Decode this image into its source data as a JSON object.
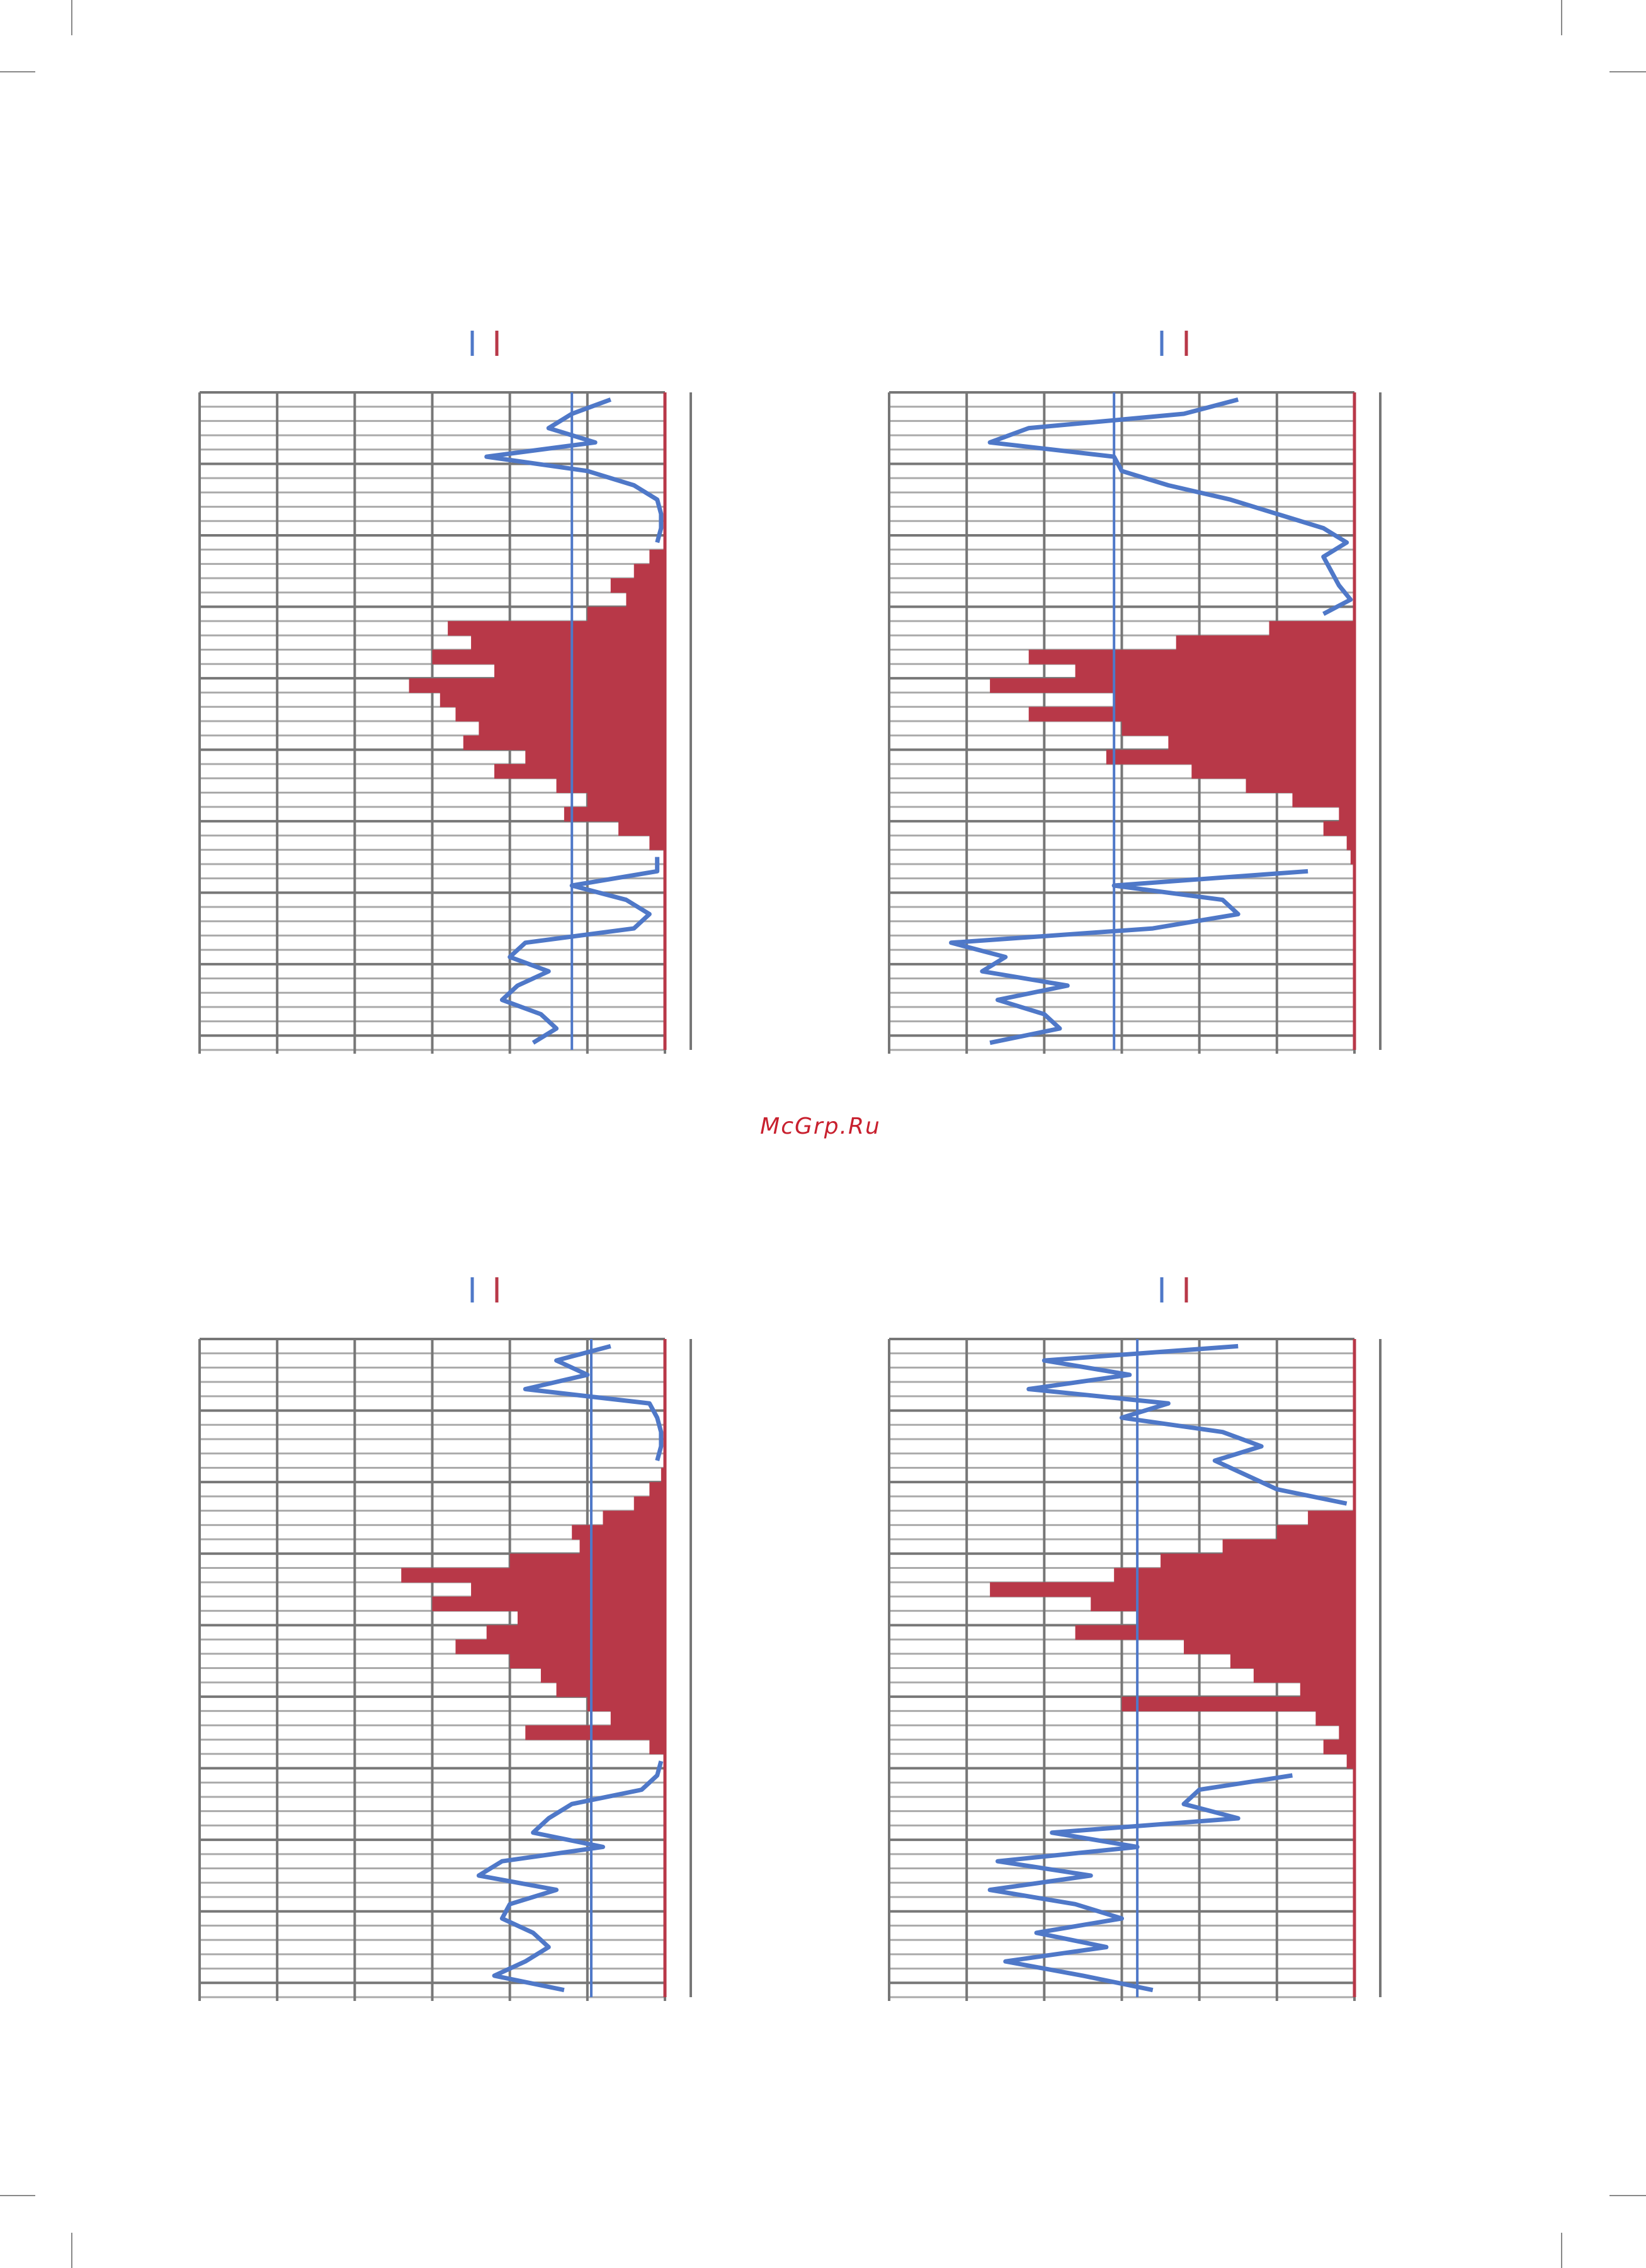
{
  "watermark": "McGrp.Ru",
  "charts": [
    {
      "type": "profile",
      "xlim": [
        0,
        6
      ],
      "xticks": [
        0,
        1,
        2,
        3,
        4,
        5,
        6
      ],
      "ref_line": 4.8,
      "series": [
        {
          "color": "#4f78c8",
          "values": [
            5.3,
            4.8,
            4.5,
            5.1,
            3.7,
            5.0,
            5.6,
            5.9,
            5.95,
            5.95,
            5.9,
            null,
            null,
            null,
            null,
            null,
            null,
            null,
            null,
            null,
            null,
            null,
            null,
            null,
            null,
            null,
            null,
            null,
            null,
            null,
            null,
            null,
            5.9,
            5.9,
            4.8,
            5.5,
            5.8,
            5.6,
            4.2,
            4.0,
            4.5,
            4.1,
            3.9,
            4.4,
            4.6,
            4.3
          ]
        },
        {
          "color": "#b83848",
          "values": [
            null,
            null,
            null,
            null,
            null,
            null,
            null,
            null,
            null,
            null,
            null,
            5.8,
            5.6,
            5.3,
            5.5,
            5.0,
            3.2,
            3.5,
            3.0,
            3.8,
            2.7,
            3.1,
            3.3,
            3.6,
            3.4,
            4.2,
            3.8,
            4.6,
            5.0,
            4.7,
            5.4,
            5.8,
            null,
            null,
            null,
            null,
            null,
            null,
            null,
            null,
            null,
            null,
            null,
            null,
            null,
            null
          ]
        }
      ]
    },
    {
      "type": "profile",
      "xlim": [
        0,
        6
      ],
      "xticks": [
        0,
        1,
        2,
        3,
        4,
        5,
        6
      ],
      "ref_line": 2.9,
      "series": [
        {
          "color": "#4f78c8",
          "values": [
            4.5,
            3.8,
            1.8,
            1.3,
            2.9,
            3.0,
            3.6,
            4.4,
            5.0,
            5.6,
            5.9,
            5.6,
            5.7,
            5.8,
            5.95,
            5.6,
            null,
            null,
            null,
            null,
            null,
            null,
            null,
            null,
            null,
            null,
            null,
            null,
            null,
            null,
            null,
            null,
            null,
            5.4,
            2.9,
            4.3,
            4.5,
            3.4,
            0.8,
            1.5,
            1.2,
            2.3,
            1.4,
            2.0,
            2.2,
            1.3
          ]
        },
        {
          "color": "#b83848",
          "values": [
            null,
            null,
            null,
            null,
            null,
            null,
            null,
            null,
            null,
            null,
            null,
            null,
            null,
            null,
            null,
            null,
            4.9,
            3.7,
            1.8,
            2.4,
            1.3,
            2.9,
            1.8,
            3.0,
            3.6,
            2.8,
            3.9,
            4.6,
            5.2,
            5.8,
            5.6,
            5.9,
            5.95,
            null,
            null,
            null,
            null,
            null,
            null,
            null,
            null,
            null,
            null,
            null,
            null,
            null
          ]
        }
      ]
    },
    {
      "type": "profile",
      "xlim": [
        0,
        6
      ],
      "xticks": [
        0,
        1,
        2,
        3,
        4,
        5,
        6
      ],
      "ref_line": 5.05,
      "series": [
        {
          "color": "#4f78c8",
          "values": [
            5.3,
            4.6,
            5.0,
            4.2,
            5.8,
            5.9,
            5.95,
            5.95,
            5.9,
            null,
            null,
            null,
            null,
            null,
            null,
            null,
            null,
            null,
            null,
            null,
            null,
            null,
            null,
            null,
            null,
            null,
            null,
            null,
            null,
            5.95,
            5.9,
            5.7,
            4.8,
            4.5,
            4.3,
            5.2,
            3.9,
            3.6,
            4.6,
            4.0,
            3.9,
            4.3,
            4.5,
            4.2,
            3.8,
            4.7
          ]
        },
        {
          "color": "#b83848",
          "values": [
            null,
            null,
            null,
            null,
            null,
            null,
            null,
            null,
            null,
            5.95,
            5.8,
            5.6,
            5.2,
            4.8,
            4.9,
            4.0,
            2.6,
            3.5,
            3.0,
            4.1,
            3.7,
            3.3,
            4.0,
            4.4,
            4.6,
            5.0,
            5.3,
            4.2,
            5.8,
            null,
            null,
            null,
            null,
            null,
            null,
            null,
            null,
            null,
            null,
            null,
            null,
            null,
            null,
            null,
            null,
            null
          ]
        }
      ]
    },
    {
      "type": "profile",
      "xlim": [
        0,
        6
      ],
      "xticks": [
        0,
        1,
        2,
        3,
        4,
        5,
        6
      ],
      "ref_line": 3.2,
      "series": [
        {
          "color": "#4f78c8",
          "values": [
            4.5,
            2.0,
            3.1,
            1.8,
            3.6,
            3.0,
            4.3,
            4.8,
            4.2,
            4.6,
            5.0,
            5.9,
            null,
            null,
            null,
            null,
            null,
            null,
            null,
            null,
            null,
            null,
            null,
            null,
            null,
            null,
            null,
            null,
            null,
            null,
            5.2,
            4.0,
            3.8,
            4.5,
            2.1,
            3.2,
            1.4,
            2.6,
            1.3,
            2.4,
            3.0,
            1.9,
            2.8,
            1.5,
            2.5,
            3.4
          ]
        },
        {
          "color": "#b83848",
          "values": [
            null,
            null,
            null,
            null,
            null,
            null,
            null,
            null,
            null,
            null,
            null,
            null,
            5.4,
            5.0,
            4.3,
            3.5,
            2.9,
            1.3,
            2.6,
            3.2,
            2.4,
            3.8,
            4.4,
            4.7,
            5.3,
            3.0,
            5.5,
            5.8,
            5.6,
            5.9,
            null,
            null,
            null,
            null,
            null,
            null,
            null,
            null,
            null,
            null,
            null,
            null,
            null,
            null,
            null,
            null
          ]
        }
      ]
    }
  ]
}
